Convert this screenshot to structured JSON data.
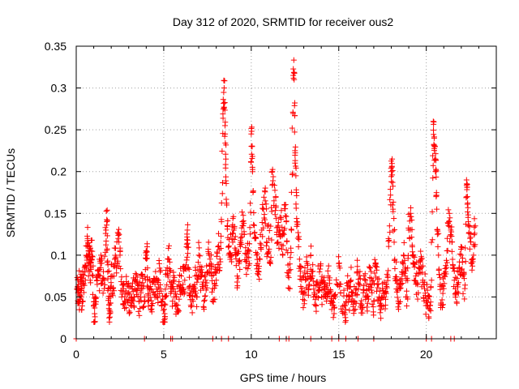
{
  "chart_data": {
    "type": "scatter",
    "title": "Day 312 of 2020, SRMTID for receiver ous2",
    "xlabel": "GPS time / hours",
    "ylabel": "SRMTID / TECUs",
    "xlim": [
      0,
      24
    ],
    "ylim": [
      0,
      0.35
    ],
    "xticks": [
      0,
      5,
      10,
      15,
      20
    ],
    "xtick_labels": [
      "0",
      "5",
      "10",
      "15",
      "20"
    ],
    "yticks": [
      0,
      0.05,
      0.1,
      0.15,
      0.2,
      0.25,
      0.3,
      0.35
    ],
    "ytick_labels": [
      "0",
      "0.05",
      "0.1",
      "0.15",
      "0.2",
      "0.25",
      "0.3",
      "0.35"
    ],
    "grid": true,
    "marker": "+",
    "color": "#ff0000",
    "series": [
      {
        "name": "SRMTID",
        "points": [
          [
            0.05,
            0.06
          ],
          [
            0.1,
            0.055
          ],
          [
            0.15,
            0.065
          ],
          [
            0.2,
            0.05
          ],
          [
            0.25,
            0.07
          ],
          [
            0.3,
            0.06
          ],
          [
            0.35,
            0.045
          ],
          [
            0.4,
            0.065
          ],
          [
            0.5,
            0.08
          ],
          [
            0.6,
            0.1
          ],
          [
            0.65,
            0.12
          ],
          [
            0.7,
            0.09
          ],
          [
            0.75,
            0.11
          ],
          [
            0.8,
            0.07
          ],
          [
            0.85,
            0.105
          ],
          [
            0.9,
            0.095
          ],
          [
            1.0,
            0.04
          ],
          [
            1.05,
            0.03
          ],
          [
            1.1,
            0.05
          ],
          [
            1.2,
            0.065
          ],
          [
            1.3,
            0.075
          ],
          [
            1.4,
            0.085
          ],
          [
            1.5,
            0.07
          ],
          [
            1.6,
            0.06
          ],
          [
            1.7,
            0.13
          ],
          [
            1.75,
            0.14
          ],
          [
            1.8,
            0.08
          ],
          [
            1.85,
            0.06
          ],
          [
            1.9,
            0.03
          ],
          [
            1.95,
            0.05
          ],
          [
            2.0,
            0.075
          ],
          [
            2.1,
            0.06
          ],
          [
            2.2,
            0.095
          ],
          [
            2.3,
            0.085
          ],
          [
            2.4,
            0.12
          ],
          [
            2.5,
            0.1
          ],
          [
            2.6,
            0.05
          ],
          [
            2.7,
            0.06
          ],
          [
            2.8,
            0.045
          ],
          [
            2.9,
            0.065
          ],
          [
            3.0,
            0.055
          ],
          [
            3.1,
            0.04
          ],
          [
            3.2,
            0.06
          ],
          [
            3.3,
            0.05
          ],
          [
            3.4,
            0.07
          ],
          [
            3.5,
            0.065
          ],
          [
            3.6,
            0.045
          ],
          [
            3.7,
            0.055
          ],
          [
            3.8,
            0.06
          ],
          [
            3.9,
            0.05
          ],
          [
            4.0,
            0.1
          ],
          [
            4.05,
            0.11
          ],
          [
            4.1,
            0.045
          ],
          [
            4.2,
            0.06
          ],
          [
            4.3,
            0.04
          ],
          [
            4.4,
            0.055
          ],
          [
            4.5,
            0.065
          ],
          [
            4.6,
            0.05
          ],
          [
            4.7,
            0.07
          ],
          [
            4.8,
            0.08
          ],
          [
            4.9,
            0.04
          ],
          [
            5.0,
            0.02
          ],
          [
            5.05,
            0.03
          ],
          [
            5.1,
            0.05
          ],
          [
            5.2,
            0.085
          ],
          [
            5.3,
            0.095
          ],
          [
            5.4,
            0.06
          ],
          [
            5.5,
            0.045
          ],
          [
            5.6,
            0.07
          ],
          [
            5.7,
            0.05
          ],
          [
            5.8,
            0.04
          ],
          [
            5.9,
            0.06
          ],
          [
            6.0,
            0.075
          ],
          [
            6.1,
            0.065
          ],
          [
            6.2,
            0.07
          ],
          [
            6.3,
            0.11
          ],
          [
            6.35,
            0.13
          ],
          [
            6.4,
            0.085
          ],
          [
            6.5,
            0.055
          ],
          [
            6.6,
            0.04
          ],
          [
            6.7,
            0.06
          ],
          [
            6.8,
            0.075
          ],
          [
            6.9,
            0.05
          ],
          [
            7.0,
            0.1
          ],
          [
            7.1,
            0.08
          ],
          [
            7.2,
            0.065
          ],
          [
            7.3,
            0.045
          ],
          [
            7.4,
            0.07
          ],
          [
            7.5,
            0.08
          ],
          [
            7.6,
            0.1
          ],
          [
            7.7,
            0.09
          ],
          [
            7.8,
            0.06
          ],
          [
            7.9,
            0.065
          ],
          [
            8.0,
            0.07
          ],
          [
            8.1,
            0.11
          ],
          [
            8.2,
            0.085
          ],
          [
            8.3,
            0.14
          ],
          [
            8.4,
            0.275
          ],
          [
            8.45,
            0.3
          ],
          [
            8.5,
            0.255
          ],
          [
            8.55,
            0.215
          ],
          [
            8.6,
            0.16
          ],
          [
            8.7,
            0.11
          ],
          [
            8.8,
            0.095
          ],
          [
            8.9,
            0.12
          ],
          [
            9.0,
            0.13
          ],
          [
            9.1,
            0.1
          ],
          [
            9.2,
            0.075
          ],
          [
            9.3,
            0.09
          ],
          [
            9.4,
            0.115
          ],
          [
            9.5,
            0.14
          ],
          [
            9.6,
            0.125
          ],
          [
            9.7,
            0.085
          ],
          [
            9.8,
            0.105
          ],
          [
            9.9,
            0.09
          ],
          [
            10.0,
            0.245
          ],
          [
            10.05,
            0.23
          ],
          [
            10.1,
            0.175
          ],
          [
            10.2,
            0.12
          ],
          [
            10.3,
            0.1
          ],
          [
            10.4,
            0.08
          ],
          [
            10.5,
            0.095
          ],
          [
            10.6,
            0.13
          ],
          [
            10.7,
            0.155
          ],
          [
            10.8,
            0.165
          ],
          [
            10.9,
            0.115
          ],
          [
            11.0,
            0.12
          ],
          [
            11.1,
            0.09
          ],
          [
            11.2,
            0.2
          ],
          [
            11.3,
            0.165
          ],
          [
            11.4,
            0.17
          ],
          [
            11.5,
            0.115
          ],
          [
            11.6,
            0.13
          ],
          [
            11.7,
            0.145
          ],
          [
            11.8,
            0.1
          ],
          [
            11.9,
            0.16
          ],
          [
            12.0,
            0.14
          ],
          [
            12.1,
            0.075
          ],
          [
            12.2,
            0.06
          ],
          [
            12.3,
            0.13
          ],
          [
            12.4,
            0.315
          ],
          [
            12.45,
            0.31
          ],
          [
            12.5,
            0.225
          ],
          [
            12.55,
            0.195
          ],
          [
            12.6,
            0.14
          ],
          [
            12.7,
            0.11
          ],
          [
            12.8,
            0.075
          ],
          [
            12.9,
            0.06
          ],
          [
            13.0,
            0.055
          ],
          [
            13.1,
            0.07
          ],
          [
            13.2,
            0.09
          ],
          [
            13.3,
            0.065
          ],
          [
            13.4,
            0.1
          ],
          [
            13.5,
            0.075
          ],
          [
            13.6,
            0.055
          ],
          [
            13.7,
            0.04
          ],
          [
            13.8,
            0.065
          ],
          [
            13.9,
            0.08
          ],
          [
            14.0,
            0.07
          ],
          [
            14.1,
            0.05
          ],
          [
            14.2,
            0.06
          ],
          [
            14.3,
            0.045
          ],
          [
            14.4,
            0.075
          ],
          [
            14.5,
            0.055
          ],
          [
            14.6,
            0.035
          ],
          [
            14.7,
            0.04
          ],
          [
            14.8,
            0.05
          ],
          [
            15.0,
            0.09
          ],
          [
            15.1,
            0.055
          ],
          [
            15.3,
            0.04
          ],
          [
            15.4,
            0.035
          ],
          [
            15.5,
            0.06
          ],
          [
            15.6,
            0.05
          ],
          [
            15.7,
            0.07
          ],
          [
            15.8,
            0.055
          ],
          [
            15.9,
            0.045
          ],
          [
            16.0,
            0.06
          ],
          [
            16.1,
            0.08
          ],
          [
            16.2,
            0.065
          ],
          [
            16.3,
            0.04
          ],
          [
            16.4,
            0.055
          ],
          [
            16.5,
            0.07
          ],
          [
            16.6,
            0.05
          ],
          [
            16.7,
            0.06
          ],
          [
            16.8,
            0.085
          ],
          [
            16.9,
            0.055
          ],
          [
            17.0,
            0.045
          ],
          [
            17.1,
            0.09
          ],
          [
            17.2,
            0.065
          ],
          [
            17.3,
            0.05
          ],
          [
            17.4,
            0.04
          ],
          [
            17.5,
            0.06
          ],
          [
            17.6,
            0.05
          ],
          [
            17.7,
            0.065
          ],
          [
            17.8,
            0.075
          ],
          [
            17.9,
            0.135
          ],
          [
            18.0,
            0.2
          ],
          [
            18.05,
            0.215
          ],
          [
            18.1,
            0.155
          ],
          [
            18.2,
            0.095
          ],
          [
            18.3,
            0.07
          ],
          [
            18.4,
            0.045
          ],
          [
            18.5,
            0.06
          ],
          [
            18.6,
            0.08
          ],
          [
            18.7,
            0.1
          ],
          [
            18.8,
            0.075
          ],
          [
            18.9,
            0.05
          ],
          [
            19.0,
            0.13
          ],
          [
            19.1,
            0.15
          ],
          [
            19.2,
            0.11
          ],
          [
            19.3,
            0.09
          ],
          [
            19.4,
            0.075
          ],
          [
            19.5,
            0.065
          ],
          [
            19.6,
            0.085
          ],
          [
            19.7,
            0.095
          ],
          [
            19.8,
            0.07
          ],
          [
            19.9,
            0.06
          ],
          [
            20.0,
            0.045
          ],
          [
            20.1,
            0.05
          ],
          [
            20.2,
            0.035
          ],
          [
            20.3,
            0.07
          ],
          [
            20.4,
            0.26
          ],
          [
            20.45,
            0.24
          ],
          [
            20.5,
            0.23
          ],
          [
            20.55,
            0.2
          ],
          [
            20.6,
            0.155
          ],
          [
            20.7,
            0.1
          ],
          [
            20.8,
            0.065
          ],
          [
            20.9,
            0.04
          ],
          [
            21.0,
            0.06
          ],
          [
            21.1,
            0.08
          ],
          [
            21.2,
            0.12
          ],
          [
            21.3,
            0.14
          ],
          [
            21.4,
            0.13
          ],
          [
            21.5,
            0.095
          ],
          [
            21.6,
            0.07
          ],
          [
            21.7,
            0.055
          ],
          [
            21.8,
            0.065
          ],
          [
            21.9,
            0.085
          ],
          [
            22.0,
            0.1
          ],
          [
            22.1,
            0.075
          ],
          [
            22.2,
            0.06
          ],
          [
            22.3,
            0.19
          ],
          [
            22.35,
            0.17
          ],
          [
            22.4,
            0.14
          ],
          [
            22.5,
            0.12
          ],
          [
            22.6,
            0.09
          ],
          [
            22.7,
            0.1
          ],
          [
            22.8,
            0.135
          ]
        ],
        "zero_points": [
          0.0,
          3.9,
          5.4,
          5.5,
          7.8,
          8.3,
          8.7,
          11.6,
          12.0,
          12.15,
          13.4,
          14.6,
          15.0,
          15.4,
          16.1,
          17.0,
          20.0,
          20.3,
          21.4,
          21.6
        ]
      }
    ]
  }
}
